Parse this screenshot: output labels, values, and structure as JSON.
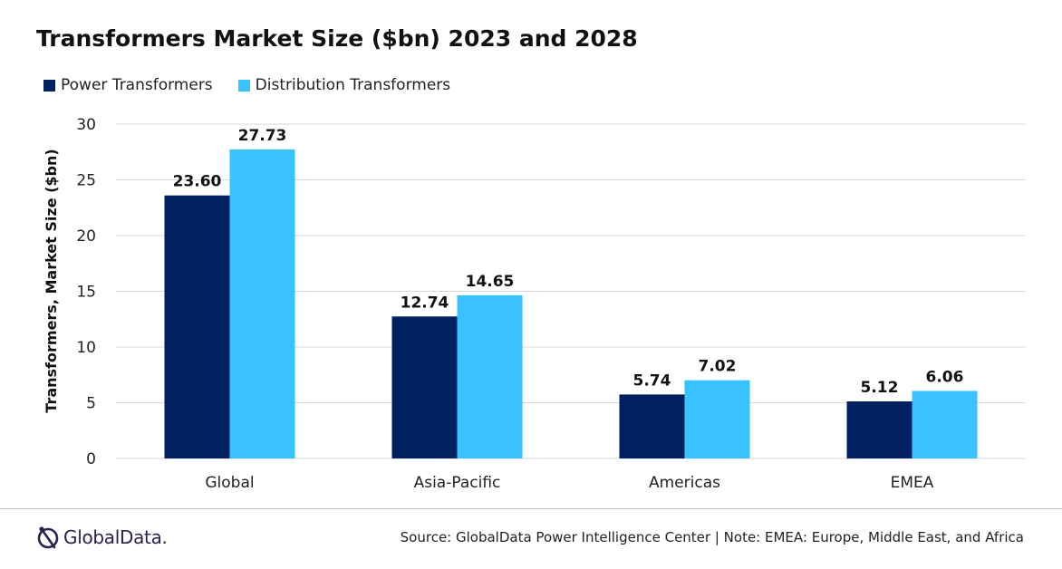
{
  "title": "Transformers Market Size ($bn) 2023 and 2028",
  "colors": {
    "series_dark": "#002060",
    "series_light": "#38C2FF",
    "grid": "#d9d9d9",
    "logo": "#2d2150"
  },
  "chart_data": {
    "type": "bar",
    "title": "Transformers Market Size ($bn) 2023 and 2028",
    "xlabel": "",
    "ylabel": "Transformers, Market Size ($bn)",
    "categories": [
      "Global",
      "Asia-Pacific",
      "Americas",
      "EMEA"
    ],
    "series": [
      {
        "name": "Power Transformers",
        "values": [
          23.6,
          12.74,
          5.74,
          5.12
        ],
        "labels": [
          "23.60",
          "12.74",
          "5.74",
          "5.12"
        ],
        "color": "#002060"
      },
      {
        "name": "Distribution Transformers",
        "values": [
          27.73,
          14.65,
          7.02,
          6.06
        ],
        "labels": [
          "27.73",
          "14.65",
          "7.02",
          "6.06"
        ],
        "color": "#38C2FF"
      }
    ],
    "ylim": [
      0,
      30
    ],
    "yticks": [
      0,
      5,
      10,
      15,
      20,
      25,
      30
    ],
    "grid": true,
    "legend_position": "top-left"
  },
  "footer": {
    "logo_text": "GlobalData.",
    "source": "Source: GlobalData Power Intelligence Center | Note: EMEA: Europe, Middle East, and Africa"
  }
}
